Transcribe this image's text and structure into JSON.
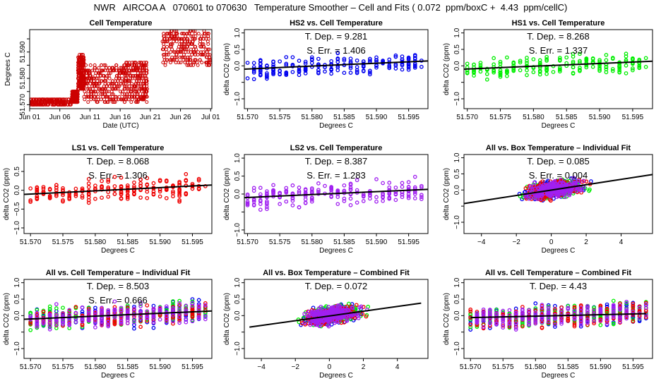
{
  "title": "NWR   AIRCOA A   070601 to 070630   Temperature Smoother – Cell and Fits ( 0.072  ppm/boxC +  4.43  ppm/cellC)",
  "colors": {
    "blue": "#0000ee",
    "green": "#00ee00",
    "red": "#ee0000",
    "purple": "#a020f0",
    "series_red_dark": "#cc0000",
    "fit_line": "#000000"
  },
  "chart_data": [
    {
      "id": "cell-temp",
      "type": "scatter",
      "title": "Cell Temperature",
      "xlabel": "Date (UTC)",
      "ylabel": "Degrees C",
      "x_ticks": [
        "Jun 01",
        "Jun 06",
        "Jun 11",
        "Jun 16",
        "Jun 21",
        "Jun 26",
        "Jul 01"
      ],
      "xlim": [
        0,
        30.2
      ],
      "ylim": [
        51.5685,
        51.5985
      ],
      "y_ticks": [
        51.57,
        51.575,
        51.58,
        51.585,
        51.59,
        51.595
      ],
      "y_tick_labels": [
        "51.570",
        "",
        "51.580",
        "",
        "51.590",
        ""
      ],
      "color": "red_dark",
      "segments": [
        {
          "x": [
            0,
            7
          ],
          "y": [
            51.57,
            51.572
          ]
        },
        {
          "x": [
            7,
            8
          ],
          "y": [
            51.571,
            51.575
          ]
        },
        {
          "x": [
            8,
            9
          ],
          "y": [
            51.576,
            51.589
          ]
        },
        {
          "x": [
            9,
            15.5
          ],
          "y": [
            51.571,
            51.585
          ]
        },
        {
          "x": [
            15.5,
            19.5
          ],
          "y": [
            51.571,
            51.586
          ]
        },
        {
          "x": [
            22,
            30
          ],
          "y": [
            51.585,
            51.598
          ]
        }
      ]
    },
    {
      "id": "hs2",
      "type": "scatter",
      "title": "HS2 vs. Cell Temperature",
      "xlabel": "Degrees C",
      "ylabel": "delta CO2 (ppm)",
      "x_ticks": [
        51.57,
        51.575,
        51.58,
        51.585,
        51.59,
        51.595
      ],
      "xlim": [
        51.5695,
        51.598
      ],
      "y_ticks": [
        1.0,
        0.5,
        0.0,
        -0.5,
        -1.0
      ],
      "y_tick_labels": [
        "1.0",
        "0.5",
        "0.0",
        "",
        "-1.0"
      ],
      "ylim": [
        -1.3,
        1.1
      ],
      "series": [
        {
          "name": "HS2",
          "color": "blue"
        }
      ],
      "fit": {
        "y_at_xmin": -0.1,
        "y_at_xmax": 0.15
      },
      "annotations": [
        "T. Dep. =  9.281",
        "S. Err. = 1.406"
      ]
    },
    {
      "id": "hs1",
      "type": "scatter",
      "title": "HS1 vs. Cell Temperature",
      "xlabel": "Degrees C",
      "ylabel": "delta CO2 (ppm)",
      "x_ticks": [
        51.57,
        51.575,
        51.58,
        51.585,
        51.59,
        51.595
      ],
      "xlim": [
        51.5695,
        51.598
      ],
      "y_ticks": [
        1.0,
        0.5,
        0.0,
        -0.5,
        -1.0
      ],
      "y_tick_labels": [
        "1.0",
        "0.5",
        "0.0",
        "",
        "-1.0"
      ],
      "ylim": [
        -1.3,
        1.1
      ],
      "series": [
        {
          "name": "HS1",
          "color": "green"
        }
      ],
      "fit": {
        "y_at_xmin": -0.1,
        "y_at_xmax": 0.14
      },
      "annotations": [
        "T. Dep. =  8.268",
        "S. Err. = 1.337"
      ]
    },
    {
      "id": "ls1",
      "type": "scatter",
      "title": "LS1 vs. Cell Temperature",
      "xlabel": "Degrees C",
      "ylabel": "delta CO2 (ppm)",
      "x_ticks": [
        51.57,
        51.575,
        51.58,
        51.585,
        51.59,
        51.595
      ],
      "xlim": [
        51.569,
        51.598
      ],
      "y_ticks": [
        0.5,
        0.0,
        -0.5,
        -1.0
      ],
      "y_tick_labels": [
        "0.5",
        "0.0",
        "-0.5",
        "-1.0"
      ],
      "ylim": [
        -1.15,
        0.95
      ],
      "series": [
        {
          "name": "LS1",
          "color": "red"
        }
      ],
      "fit": {
        "y_at_xmin": -0.11,
        "y_at_xmax": 0.14
      },
      "annotations": [
        "T. Dep. =  8.068",
        "S. Err. = 1.306"
      ]
    },
    {
      "id": "ls2",
      "type": "scatter",
      "title": "LS2 vs. Cell Temperature",
      "xlabel": "Degrees C",
      "ylabel": "delta CO2 (ppm)",
      "x_ticks": [
        51.57,
        51.575,
        51.58,
        51.585,
        51.59,
        51.595
      ],
      "xlim": [
        51.5695,
        51.598
      ],
      "y_ticks": [
        1.0,
        0.5,
        0.0,
        -0.5,
        -1.0
      ],
      "y_tick_labels": [
        "1.0",
        "0.5",
        "0.0",
        "",
        "-1.0"
      ],
      "ylim": [
        -1.1,
        1.1
      ],
      "series": [
        {
          "name": "LS2",
          "color": "purple"
        }
      ],
      "fit": {
        "y_at_xmin": -0.1,
        "y_at_xmax": 0.13
      },
      "annotations": [
        "T. Dep. =  8.387",
        "S. Err. = 1.283"
      ]
    },
    {
      "id": "all-box-ind",
      "type": "scatter",
      "title": "All vs. Box Temperature – Individual Fit",
      "xlabel": "Degrees C",
      "ylabel": "delta CO2 (ppm)",
      "x_ticks": [
        -4,
        -2,
        0,
        2,
        4
      ],
      "xlim": [
        -5,
        5.8
      ],
      "y_ticks": [
        1.0,
        0.5,
        0.0,
        -0.5,
        -1.0
      ],
      "y_tick_labels": [
        "1.0",
        "0.5",
        "0.0",
        "",
        "-1.0"
      ],
      "ylim": [
        -1.35,
        1.1
      ],
      "series": [
        {
          "name": "HS2",
          "color": "blue"
        },
        {
          "name": "HS1",
          "color": "green"
        },
        {
          "name": "LS1",
          "color": "red"
        },
        {
          "name": "LS2",
          "color": "purple"
        }
      ],
      "fit": {
        "y_at_xmin": -0.42,
        "y_at_xmax": 0.48
      },
      "annotations": [
        "T. Dep. =  0.085",
        "S. Err. = 0.004"
      ]
    },
    {
      "id": "all-cell-ind",
      "type": "scatter",
      "title": "All vs. Cell Temperature – Individual Fit",
      "xlabel": "Degrees C",
      "ylabel": "delta CO2 (ppm)",
      "x_ticks": [
        51.57,
        51.575,
        51.58,
        51.585,
        51.59,
        51.595
      ],
      "xlim": [
        51.569,
        51.598
      ],
      "y_ticks": [
        1.0,
        0.5,
        0.0,
        -0.5,
        -1.0
      ],
      "y_tick_labels": [
        "1.0",
        "0.5",
        "0.0",
        "",
        "-1.0"
      ],
      "ylim": [
        -1.3,
        1.1
      ],
      "series": [
        {
          "name": "HS2",
          "color": "blue"
        },
        {
          "name": "HS1",
          "color": "green"
        },
        {
          "name": "LS1",
          "color": "red"
        },
        {
          "name": "LS2",
          "color": "purple"
        }
      ],
      "fit": {
        "y_at_xmin": -0.11,
        "y_at_xmax": 0.14
      },
      "annotations": [
        "T. Dep. =  8.503",
        "S. Err. = 0.666"
      ]
    },
    {
      "id": "all-box-comb",
      "type": "scatter",
      "title": "All vs. Box Temperature – Combined Fit",
      "xlabel": "Degrees C",
      "ylabel": "delta CO2 (ppm)",
      "x_ticks": [
        -4,
        -2,
        0,
        2,
        4
      ],
      "xlim": [
        -5,
        5.8
      ],
      "y_ticks": [
        1.0,
        0.5,
        0.0,
        -0.5,
        -1.0
      ],
      "y_tick_labels": [
        "1.0",
        "0.5",
        "0.0",
        "",
        "-1.0"
      ],
      "ylim": [
        -1.3,
        1.1
      ],
      "series": [
        {
          "name": "HS2",
          "color": "blue"
        },
        {
          "name": "HS1",
          "color": "green"
        },
        {
          "name": "LS1",
          "color": "red"
        },
        {
          "name": "LS2",
          "color": "purple"
        }
      ],
      "fit": {
        "x": [
          -4.7,
          5.4
        ],
        "y": [
          -0.35,
          0.38
        ]
      },
      "annotations": [
        "T. Dep. =  0.072"
      ]
    },
    {
      "id": "all-cell-comb",
      "type": "scatter",
      "title": "All vs. Cell Temperature – Combined Fit",
      "xlabel": "Degrees C",
      "ylabel": "delta CO2 (ppm)",
      "x_ticks": [
        51.57,
        51.575,
        51.58,
        51.585,
        51.59,
        51.595
      ],
      "xlim": [
        51.569,
        51.598
      ],
      "y_ticks": [
        1.0,
        0.5,
        0.0,
        -0.5,
        -1.0
      ],
      "y_tick_labels": [
        "1.0",
        "0.5",
        "0.0",
        "",
        "-1.0"
      ],
      "ylim": [
        -1.3,
        1.1
      ],
      "series": [
        {
          "name": "HS2",
          "color": "blue"
        },
        {
          "name": "HS1",
          "color": "green"
        },
        {
          "name": "LS1",
          "color": "red"
        },
        {
          "name": "LS2",
          "color": "purple"
        }
      ],
      "fit": {
        "x": [
          51.57,
          51.597
        ],
        "y": [
          -0.06,
          0.06
        ]
      },
      "annotations": [
        "T. Dep. =  4.43"
      ]
    }
  ]
}
